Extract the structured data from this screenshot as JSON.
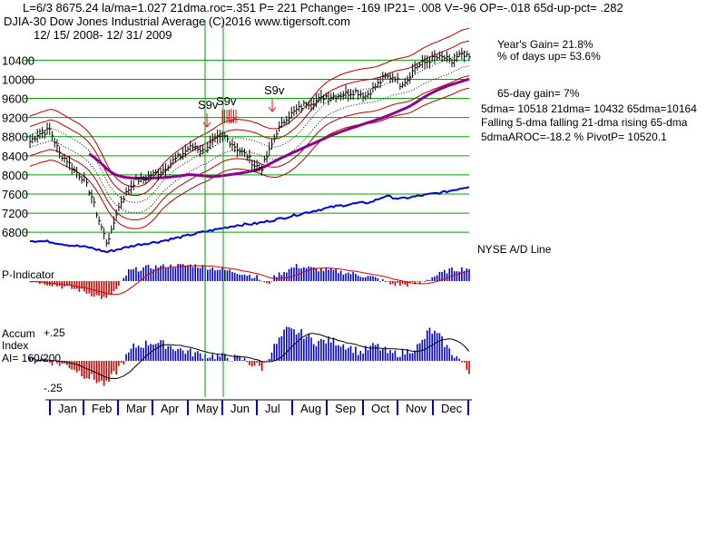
{
  "header": {
    "line1": "L=6/3   8675.24  la/ma=1.027 21dma.roc=.351 P=  221 Pchange= -169 IP21= .008 V=-96 OP=-.018 65d-up-pct= .282",
    "line2": "DJIA-30  Dow Jones Industrial Average   (C)2016 www.tigersoft.com",
    "line3": "12/ 15/ 2008- 12/ 31/ 2009"
  },
  "stats": {
    "years_gain": "Year's Gain= 21.8%",
    "days_up": "% of days up= 53.6%",
    "gain65": "65-day gain= 7%",
    "dma_line": "5dma= 10518 21dma= 10432 65dma=10164",
    "trend_line": "Falling 5-dma falling 21-dma rising 65-dma",
    "aroc_line": "5dmaAROC=-18.2 %  PivotP= 10520.1"
  },
  "panels": {
    "nyse_label": "NYSE A/D Line",
    "pind_label": "P-Indicator",
    "accum_label1": "Accum",
    "accum_label2": "Index",
    "accum_label3": "AI= 160/200",
    "accum_top": "+.25",
    "accum_bottom": "-.25"
  },
  "signals": [
    "S9v",
    "S9v",
    "S9v"
  ],
  "colors": {
    "price_bars": "#000000",
    "band": "#b00000",
    "ma65": "#8a008a",
    "ad_line": "#0000cc",
    "pos_hist": "#0000cc",
    "neg_hist": "#cc0000",
    "grid": "#00a000",
    "signal_arrow": "#ff0000"
  },
  "chart_data": {
    "type": "line",
    "y_ticks": [
      "10400",
      "10000",
      "9600",
      "9200",
      "8800",
      "8400",
      "8000",
      "7600",
      "7200",
      "6800"
    ],
    "ylim": [
      6500,
      10900
    ],
    "months": [
      "Jan",
      "Feb",
      "Mar",
      "Apr",
      "May",
      "Jun",
      "Jul",
      "Aug",
      "Sep",
      "Oct",
      "Nov",
      "Dec"
    ],
    "price_keypoints": [
      [
        0,
        8700
      ],
      [
        3,
        8850
      ],
      [
        6,
        8900
      ],
      [
        8,
        8950
      ],
      [
        10,
        8700
      ],
      [
        12,
        8450
      ],
      [
        15,
        8300
      ],
      [
        18,
        8100
      ],
      [
        20,
        8000
      ],
      [
        22,
        7900
      ],
      [
        25,
        7550
      ],
      [
        27,
        7200
      ],
      [
        29,
        6900
      ],
      [
        31,
        6600
      ],
      [
        33,
        6800
      ],
      [
        35,
        7200
      ],
      [
        37,
        7450
      ],
      [
        40,
        7700
      ],
      [
        43,
        7900
      ],
      [
        46,
        7900
      ],
      [
        49,
        8000
      ],
      [
        52,
        8050
      ],
      [
        55,
        8150
      ],
      [
        58,
        8300
      ],
      [
        61,
        8400
      ],
      [
        64,
        8550
      ],
      [
        67,
        8600
      ],
      [
        70,
        8500
      ],
      [
        73,
        8650
      ],
      [
        76,
        8750
      ],
      [
        79,
        8800
      ],
      [
        82,
        8650
      ],
      [
        85,
        8500
      ],
      [
        88,
        8400
      ],
      [
        91,
        8200
      ],
      [
        94,
        8150
      ],
      [
        97,
        8500
      ],
      [
        100,
        8900
      ],
      [
        104,
        9200
      ],
      [
        108,
        9350
      ],
      [
        112,
        9500
      ],
      [
        116,
        9550
      ],
      [
        120,
        9650
      ],
      [
        124,
        9650
      ],
      [
        128,
        9700
      ],
      [
        132,
        9750
      ],
      [
        136,
        9650
      ],
      [
        140,
        9850
      ],
      [
        144,
        10050
      ],
      [
        148,
        10050
      ],
      [
        150,
        9900
      ],
      [
        153,
        10000
      ],
      [
        156,
        10250
      ],
      [
        160,
        10350
      ],
      [
        164,
        10450
      ],
      [
        168,
        10450
      ],
      [
        171,
        10350
      ],
      [
        174,
        10500
      ],
      [
        178,
        10450
      ]
    ],
    "ad_line_keypoints": [
      [
        0,
        0.55
      ],
      [
        8,
        0.53
      ],
      [
        16,
        0.47
      ],
      [
        24,
        0.43
      ],
      [
        31,
        0.35
      ],
      [
        36,
        0.4
      ],
      [
        44,
        0.48
      ],
      [
        52,
        0.53
      ],
      [
        60,
        0.6
      ],
      [
        68,
        0.68
      ],
      [
        76,
        0.75
      ],
      [
        84,
        0.82
      ],
      [
        92,
        0.85
      ],
      [
        100,
        0.92
      ],
      [
        108,
        1.0
      ],
      [
        116,
        1.08
      ],
      [
        124,
        1.15
      ],
      [
        132,
        1.2
      ],
      [
        138,
        1.22
      ],
      [
        144,
        1.33
      ],
      [
        150,
        1.28
      ],
      [
        156,
        1.32
      ],
      [
        162,
        1.36
      ],
      [
        168,
        1.4
      ],
      [
        174,
        1.46
      ],
      [
        178,
        1.5
      ]
    ],
    "p_indicator_keypoints": [
      [
        0,
        0.05
      ],
      [
        10,
        -0.2
      ],
      [
        20,
        -0.45
      ],
      [
        31,
        -0.9
      ],
      [
        36,
        -0.3
      ],
      [
        40,
        0.5
      ],
      [
        48,
        0.7
      ],
      [
        56,
        0.75
      ],
      [
        66,
        0.8
      ],
      [
        74,
        0.65
      ],
      [
        84,
        0.45
      ],
      [
        92,
        0.2
      ],
      [
        96,
        -0.2
      ],
      [
        100,
        0.3
      ],
      [
        108,
        0.75
      ],
      [
        116,
        0.6
      ],
      [
        124,
        0.5
      ],
      [
        132,
        0.35
      ],
      [
        140,
        0.15
      ],
      [
        146,
        -0.15
      ],
      [
        152,
        -0.2
      ],
      [
        158,
        -0.1
      ],
      [
        164,
        0.25
      ],
      [
        170,
        0.55
      ],
      [
        178,
        0.65
      ]
    ],
    "accum_keypoints": [
      [
        0,
        0.0
      ],
      [
        6,
        0.05
      ],
      [
        10,
        -0.05
      ],
      [
        16,
        -0.15
      ],
      [
        22,
        -0.4
      ],
      [
        28,
        -0.6
      ],
      [
        31,
        -0.7
      ],
      [
        36,
        -0.2
      ],
      [
        42,
        0.4
      ],
      [
        50,
        0.55
      ],
      [
        56,
        0.45
      ],
      [
        62,
        0.3
      ],
      [
        68,
        0.2
      ],
      [
        74,
        0.15
      ],
      [
        80,
        0.1
      ],
      [
        86,
        0.05
      ],
      [
        90,
        -0.1
      ],
      [
        94,
        -0.2
      ],
      [
        98,
        0.3
      ],
      [
        104,
        0.9
      ],
      [
        110,
        0.8
      ],
      [
        116,
        0.55
      ],
      [
        122,
        0.6
      ],
      [
        128,
        0.45
      ],
      [
        134,
        0.25
      ],
      [
        140,
        0.45
      ],
      [
        146,
        0.2
      ],
      [
        152,
        0.25
      ],
      [
        158,
        0.45
      ],
      [
        162,
        0.9
      ],
      [
        166,
        0.7
      ],
      [
        170,
        0.3
      ],
      [
        174,
        0.05
      ],
      [
        178,
        -0.35
      ]
    ]
  }
}
